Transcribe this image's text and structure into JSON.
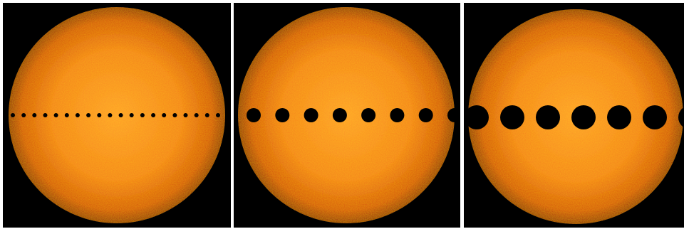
{
  "figure": {
    "background_color": "#ffffff",
    "panel_background_color": "#000000",
    "sun_colors": {
      "center": "#ff9a2a",
      "mid": "#f07a18",
      "limb": "#b82a08",
      "edge": "#7a1004"
    },
    "panels": [
      {
        "id": "panel-1",
        "transit_dots": 20,
        "dot_size": "small"
      },
      {
        "id": "panel-2",
        "transit_dots": 8,
        "dot_size": "medium"
      },
      {
        "id": "panel-3",
        "transit_dots": 7,
        "dot_size": "large"
      }
    ]
  }
}
